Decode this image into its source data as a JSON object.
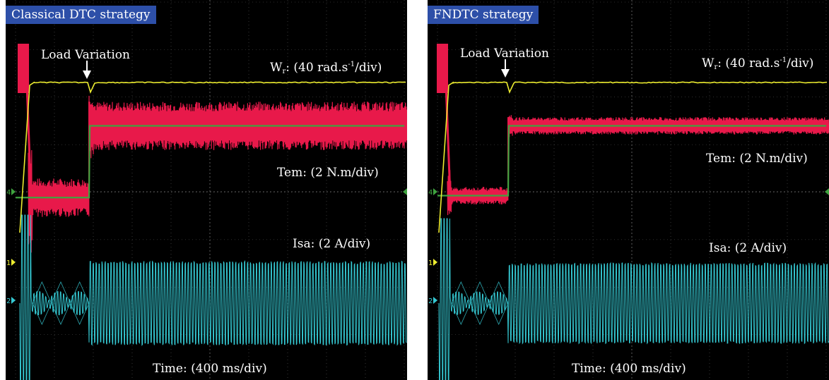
{
  "colors": {
    "background": "#000000",
    "grid": "#5a5a5a",
    "speed": "#ecec30",
    "torque": "#e8194a",
    "torque_ref": "#3fa33f",
    "current": "#35c9d3",
    "title_bg": "#2d4fa8"
  },
  "chart_data": [
    {
      "type": "line",
      "title": "Classical DTC strategy",
      "annotation": "Load Variation",
      "scales": {
        "speed": "(40 rad.s",
        "speed_exp": "-1",
        "speed_unit": "/div)",
        "torque": "Tem: (2 N.m/div)",
        "current": "Isa: (2 A/div)",
        "time": "Time: (400 ms/div)"
      },
      "channel_markers": [
        "1",
        "2",
        "4"
      ],
      "time_ms": [
        0,
        60,
        150,
        300,
        350,
        360,
        365,
        375,
        400,
        450,
        800,
        1600,
        2400,
        3200,
        4000
      ],
      "load_step_ms": 400,
      "torque_ripple_steady_div": 1.25,
      "torque_ripple_startup_div": 1.0,
      "torque_ref_div": [
        -0.15,
        1.7
      ],
      "current_envelope_div": 2.5,
      "series": [
        {
          "name": "W",
          "values": [
            0,
            0,
            0,
            0,
            0,
            0,
            0,
            0,
            0,
            0,
            0,
            0,
            0,
            0,
            0
          ]
        }
      ],
      "speed_div": {
        "steady": 3.0,
        "dip": 2.75
      },
      "torque_div": {
        "startup_peak": 4.4,
        "low_load": -0.15,
        "high_load": 1.7
      }
    },
    {
      "type": "line",
      "title": "FNDTC strategy",
      "annotation": "Load Variation",
      "scales": {
        "speed": "(40 rad.s",
        "speed_exp": "-1",
        "speed_unit": "/div)",
        "torque": "Tem: (2 N.m/div)",
        "current": "Isa: (2 A/div)",
        "time": "Time: (400 ms/div)"
      },
      "channel_markers": [
        "1",
        "2",
        "4"
      ],
      "time_ms": [
        0,
        60,
        150,
        300,
        350,
        360,
        365,
        375,
        400,
        450,
        800,
        1600,
        2400,
        3200,
        4000
      ],
      "load_step_ms": 400,
      "torque_ripple_steady_div": 0.45,
      "torque_ripple_startup_div": 0.45,
      "torque_ref_div": [
        -0.1,
        1.7
      ],
      "current_envelope_div": 2.4,
      "series": [
        {
          "name": "W",
          "values": [
            0,
            0,
            0,
            0,
            0,
            0,
            0,
            0,
            0,
            0,
            0,
            0,
            0,
            0,
            0
          ]
        }
      ],
      "speed_div": {
        "steady": 3.0,
        "dip": 2.75
      },
      "torque_div": {
        "startup_peak": 4.4,
        "low_load": -0.1,
        "high_load": 1.7
      }
    }
  ]
}
